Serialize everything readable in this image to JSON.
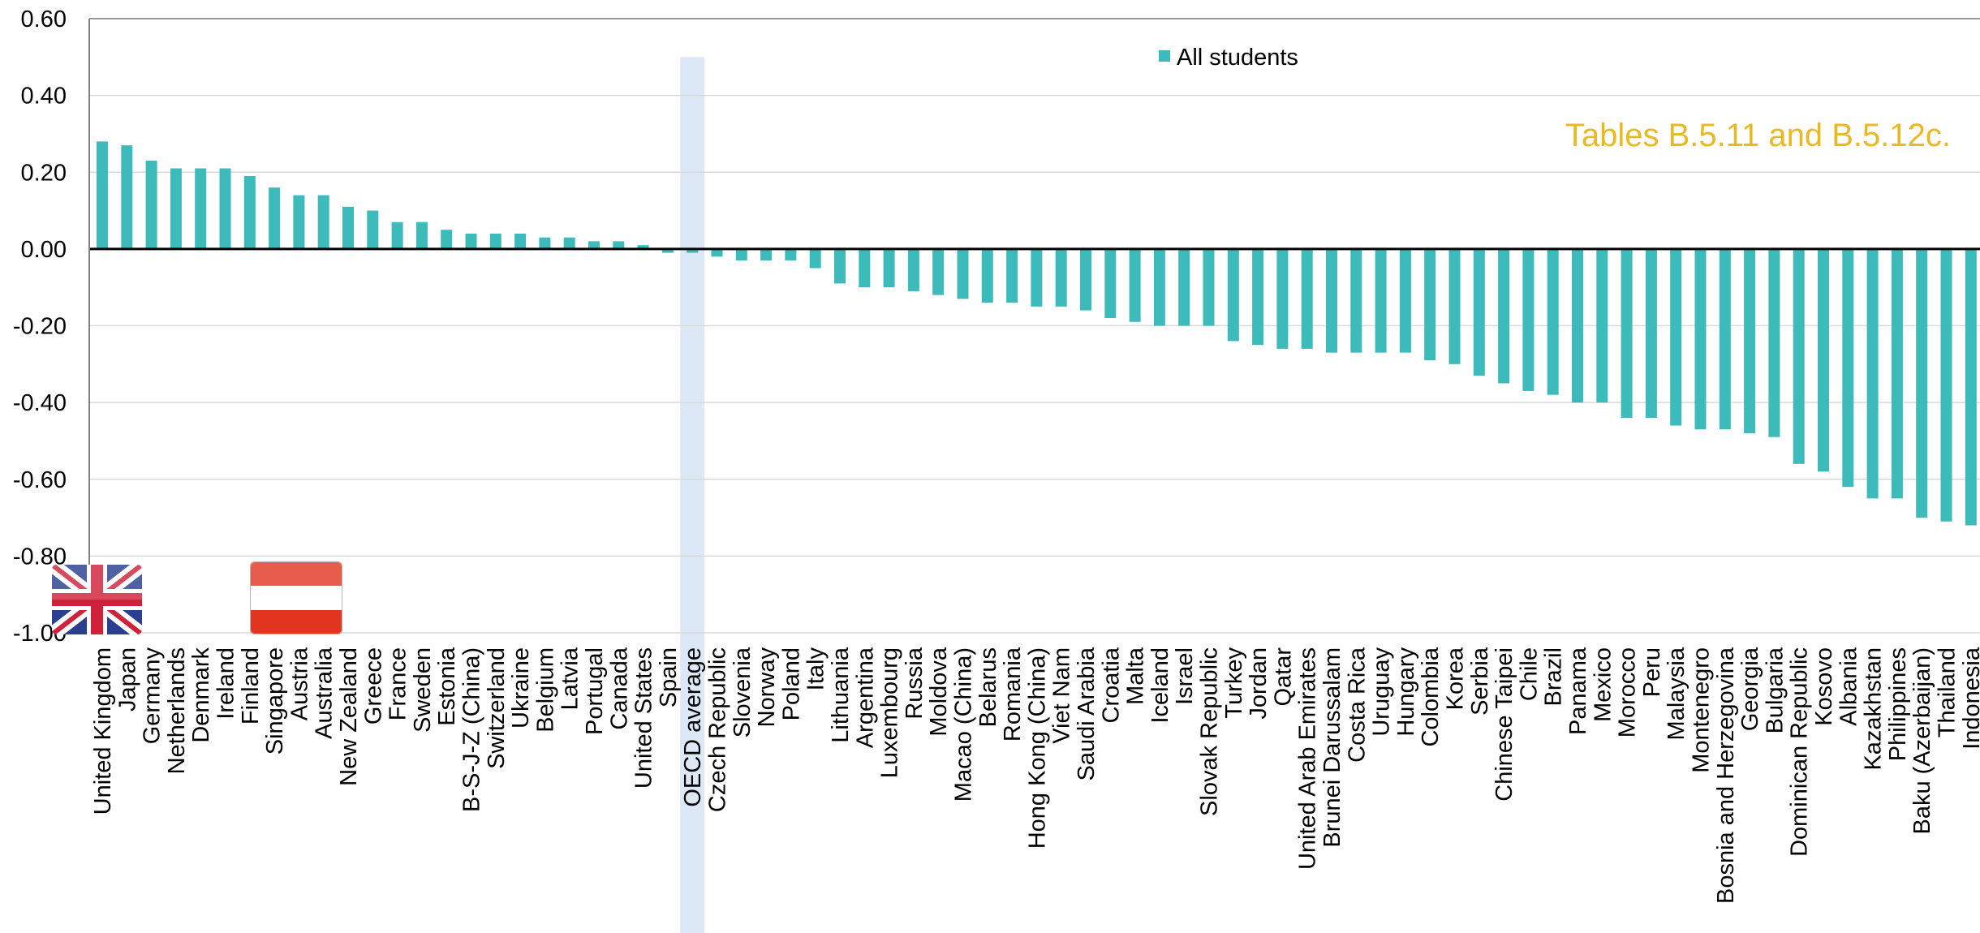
{
  "chart_data": {
    "type": "bar",
    "categories": [
      "United Kingdom",
      "Japan",
      "Germany",
      "Netherlands",
      "Denmark",
      "Ireland",
      "Finland",
      "Singapore",
      "Austria",
      "Australia",
      "New Zealand",
      "Greece",
      "France",
      "Sweden",
      "Estonia",
      "B-S-J-Z (China)",
      "Switzerland",
      "Ukraine",
      "Belgium",
      "Latvia",
      "Portugal",
      "Canada",
      "United States",
      "Spain",
      "OECD average",
      "Czech Republic",
      "Slovenia",
      "Norway",
      "Poland",
      "Italy",
      "Lithuania",
      "Argentina",
      "Luxembourg",
      "Russia",
      "Moldova",
      "Macao (China)",
      "Belarus",
      "Romania",
      "Hong Kong (China)",
      "Viet Nam",
      "Saudi Arabia",
      "Croatia",
      "Malta",
      "Iceland",
      "Israel",
      "Slovak Republic",
      "Turkey",
      "Jordan",
      "Qatar",
      "United Arab Emirates",
      "Brunei Darussalam",
      "Costa Rica",
      "Uruguay",
      "Hungary",
      "Colombia",
      "Korea",
      "Serbia",
      "Chinese Taipei",
      "Chile",
      "Brazil",
      "Panama",
      "Mexico",
      "Morocco",
      "Peru",
      "Malaysia",
      "Montenegro",
      "Bosnia and Herzegovina",
      "Georgia",
      "Bulgaria",
      "Dominican Republic",
      "Kosovo",
      "Albania",
      "Kazakhstan",
      "Philippines",
      "Baku (Azerbaijan)",
      "Thailand",
      "Indonesia"
    ],
    "series": [
      {
        "name": "All students",
        "values": [
          0.28,
          0.27,
          0.23,
          0.21,
          0.21,
          0.21,
          0.19,
          0.16,
          0.14,
          0.14,
          0.11,
          0.1,
          0.07,
          0.07,
          0.05,
          0.04,
          0.04,
          0.04,
          0.03,
          0.03,
          0.02,
          0.02,
          0.01,
          -0.01,
          -0.01,
          -0.02,
          -0.03,
          -0.03,
          -0.03,
          -0.05,
          -0.09,
          -0.1,
          -0.1,
          -0.11,
          -0.12,
          -0.13,
          -0.14,
          -0.14,
          -0.15,
          -0.15,
          -0.16,
          -0.18,
          -0.19,
          -0.2,
          -0.2,
          -0.2,
          -0.24,
          -0.25,
          -0.26,
          -0.26,
          -0.27,
          -0.27,
          -0.27,
          -0.27,
          -0.29,
          -0.3,
          -0.33,
          -0.35,
          -0.37,
          -0.38,
          -0.4,
          -0.4,
          -0.44,
          -0.44,
          -0.46,
          -0.47,
          -0.47,
          -0.48,
          -0.49,
          -0.56,
          -0.58,
          -0.62,
          -0.65,
          -0.65,
          -0.7,
          -0.71,
          -0.72
        ]
      }
    ],
    "highlight_category": "OECD average",
    "ylim": [
      -1.0,
      0.6
    ],
    "yticks": [
      "-1.00",
      "-0.80",
      "-0.60",
      "-0.40",
      "-0.20",
      "0.00",
      "0.20",
      "0.40",
      "0.60"
    ],
    "grid": true,
    "legend_position": "top-center",
    "annotation": "Tables B.5.11 and B.5.12c.",
    "colors": {
      "bar": "#3dbbba",
      "highlight": "#dce8f6",
      "annotation": "#e8b825",
      "grid": "#d9d9d9",
      "axis": "#808080"
    }
  },
  "flags": [
    {
      "icon": "united-kingdom-flag-icon"
    },
    {
      "icon": "austria-flag-icon"
    }
  ]
}
